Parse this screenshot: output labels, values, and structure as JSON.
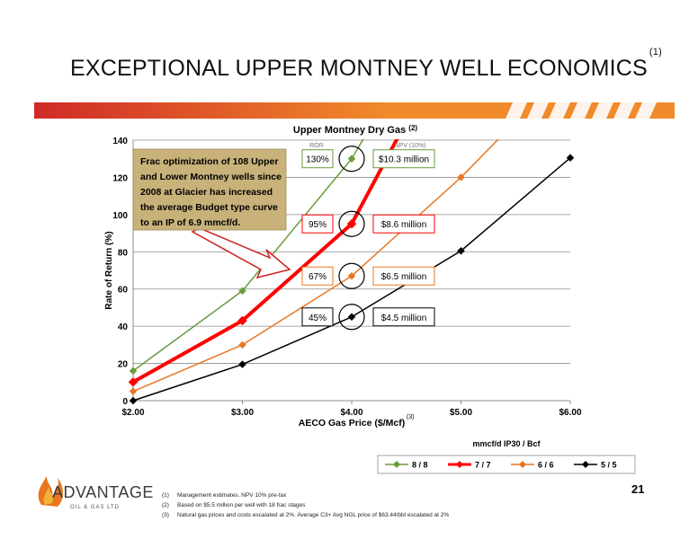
{
  "slide": {
    "title": "EXCEPTIONAL UPPER MONTNEY WELL ECONOMICS",
    "title_note": "(1)",
    "page_number": "21"
  },
  "logo": {
    "name": "ADVANTAGE",
    "sub": "OIL & GAS LTD"
  },
  "footnotes": [
    {
      "num": "(1)",
      "text": "Management estimates. NPV 10% pre-tax"
    },
    {
      "num": "(2)",
      "text": "Based on $5.5 million per well with 18 frac stages"
    },
    {
      "num": "(3)",
      "text": "Natural gas prices and costs escalated at 2%. Average C3+ Avg NGL price of $63.44/bbl escalated at 2%"
    }
  ],
  "colors": {
    "banner_start": "#cf2a27",
    "banner_end": "#f08a2a",
    "callout_fill": "#c8b27a"
  },
  "chart_data": {
    "type": "line",
    "title": "Upper Montney Dry Gas",
    "title_note": "(2)",
    "xlabel": "AECO Gas Price ($/Mcf)",
    "xlabel_note": "(3)",
    "ylabel": "Rate of Return (%)",
    "x": [
      2,
      3,
      4,
      5,
      6
    ],
    "x_tick_labels": [
      "$2.00",
      "$3.00",
      "$4.00",
      "$5.00",
      "$6.00"
    ],
    "xlim": [
      2,
      6
    ],
    "y_ticks": [
      0,
      20,
      40,
      60,
      80,
      100,
      120,
      140
    ],
    "ylim": [
      0,
      140
    ],
    "grid": true,
    "legend_title": "mmcf/d IP30 / Bcf",
    "legend_position": "bottom-right",
    "series": [
      {
        "name": "8 / 8",
        "color": "#6a9a3a",
        "width": 1.5,
        "marker": "diamond",
        "x": [
          2,
          3,
          4,
          4.5
        ],
        "y": [
          16,
          59,
          130,
          180
        ]
      },
      {
        "name": "7 / 7",
        "color": "#ff0000",
        "width": 4,
        "marker": "diamond",
        "x": [
          2,
          3,
          4,
          4.5
        ],
        "y": [
          10,
          43,
          95,
          150
        ]
      },
      {
        "name": "6 / 6",
        "color": "#e87722",
        "width": 1.5,
        "marker": "diamond",
        "x": [
          2,
          3,
          4,
          5,
          6
        ],
        "y": [
          5,
          30,
          67,
          120,
          180
        ]
      },
      {
        "name": "5 / 5",
        "color": "#000000",
        "width": 1.5,
        "marker": "diamond",
        "x": [
          2,
          3,
          4,
          5,
          6
        ],
        "y": [
          0,
          19.5,
          45,
          80.5,
          130.5
        ]
      }
    ],
    "column_headers": {
      "ror": "ROR",
      "npv": "NPV (10%)"
    },
    "annotations": [
      {
        "y": 130,
        "ror": "130%",
        "npv": "$10.3 million",
        "border": "#6a9a3a"
      },
      {
        "y": 95,
        "ror": "95%",
        "npv": "$8.6 million",
        "border": "#ff0000"
      },
      {
        "y": 67,
        "ror": "67%",
        "npv": "$6.5 million",
        "border": "#e87722"
      },
      {
        "y": 45,
        "ror": "45%",
        "npv": "$4.5 million",
        "border": "#000000"
      }
    ],
    "callout": [
      "Frac optimization of 108 Upper",
      "and Lower Montney wells since",
      "2008 at Glacier has increased",
      "the average Budget type curve",
      "to an IP of 6.9 mmcf/d."
    ]
  }
}
